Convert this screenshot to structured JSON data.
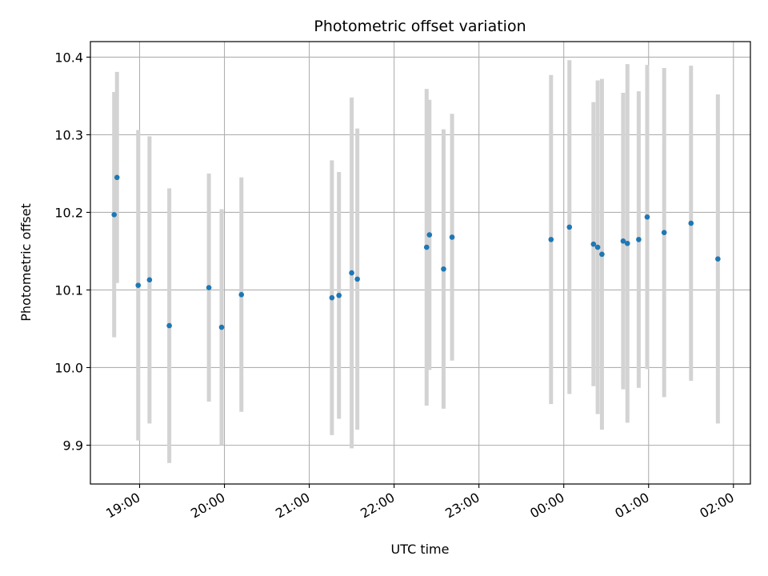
{
  "chart_data": {
    "type": "scatter",
    "title": "Photometric offset variation",
    "xlabel": "UTC time",
    "ylabel": "Photometric offset",
    "x_axis_kind": "time",
    "x_start": "18:25",
    "x_end": "02:12",
    "xlim_hours": [
      18.42,
      26.2
    ],
    "ylim": [
      9.85,
      10.42
    ],
    "grid": true,
    "x_ticks": [
      "19:00",
      "20:00",
      "21:00",
      "22:00",
      "23:00",
      "00:00",
      "01:00",
      "02:00"
    ],
    "y_ticks": [
      "9.9",
      "10.0",
      "10.1",
      "10.2",
      "10.3",
      "10.4"
    ],
    "marker_color": "#1f77b4",
    "errorbar_color": "#d3d3d3",
    "points": [
      {
        "t": "18:42",
        "y": 10.197,
        "err": 0.158
      },
      {
        "t": "18:44",
        "y": 10.245,
        "err": 0.136
      },
      {
        "t": "18:59",
        "y": 10.106,
        "err": 0.2
      },
      {
        "t": "19:07",
        "y": 10.113,
        "err": 0.185
      },
      {
        "t": "19:21",
        "y": 10.054,
        "err": 0.177
      },
      {
        "t": "19:49",
        "y": 10.103,
        "err": 0.147
      },
      {
        "t": "19:58",
        "y": 10.052,
        "err": 0.152
      },
      {
        "t": "20:12",
        "y": 10.094,
        "err": 0.151
      },
      {
        "t": "21:16",
        "y": 10.09,
        "err": 0.177
      },
      {
        "t": "21:21",
        "y": 10.093,
        "err": 0.159
      },
      {
        "t": "21:30",
        "y": 10.122,
        "err": 0.226
      },
      {
        "t": "21:34",
        "y": 10.114,
        "err": 0.194
      },
      {
        "t": "22:23",
        "y": 10.155,
        "err": 0.204
      },
      {
        "t": "22:25",
        "y": 10.171,
        "err": 0.174
      },
      {
        "t": "22:35",
        "y": 10.127,
        "err": 0.18
      },
      {
        "t": "22:41",
        "y": 10.168,
        "err": 0.159
      },
      {
        "t": "23:51",
        "y": 10.165,
        "err": 0.212
      },
      {
        "t": "00:04",
        "y": 10.181,
        "err": 0.215
      },
      {
        "t": "00:21",
        "y": 10.159,
        "err": 0.183
      },
      {
        "t": "00:24",
        "y": 10.155,
        "err": 0.215
      },
      {
        "t": "00:27",
        "y": 10.146,
        "err": 0.226
      },
      {
        "t": "00:42",
        "y": 10.163,
        "err": 0.191
      },
      {
        "t": "00:45",
        "y": 10.16,
        "err": 0.231
      },
      {
        "t": "00:53",
        "y": 10.165,
        "err": 0.191
      },
      {
        "t": "00:59",
        "y": 10.194,
        "err": 0.196
      },
      {
        "t": "01:11",
        "y": 10.174,
        "err": 0.212
      },
      {
        "t": "01:30",
        "y": 10.186,
        "err": 0.203
      },
      {
        "t": "01:49",
        "y": 10.14,
        "err": 0.212
      }
    ]
  }
}
